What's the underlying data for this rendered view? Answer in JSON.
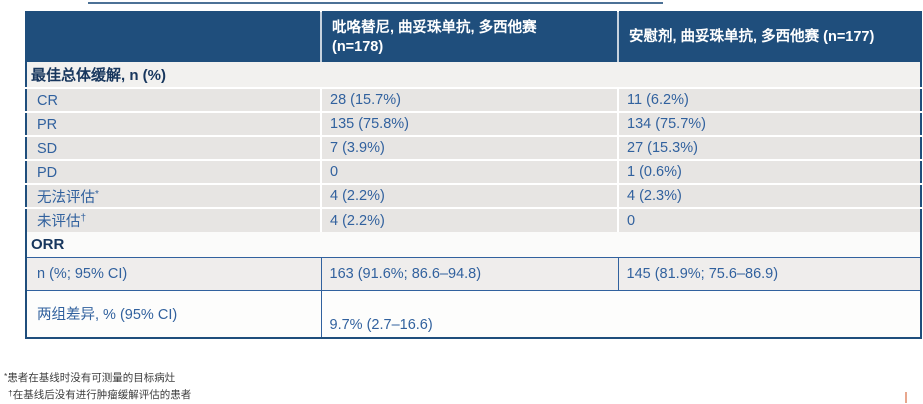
{
  "colors": {
    "header_bg": "#1F4E7C",
    "header_text": "#FFFFFF",
    "row_bg": "#E7E5E3",
    "row_text": "#31619E",
    "section_text": "#17365D",
    "grid_blue": "#31619E",
    "footnote_text": "#3D3D3D",
    "artifact_orange": "#E08A68"
  },
  "table": {
    "header": {
      "col1": "",
      "col2": "吡咯替尼, 曲妥珠单抗, 多西他赛\n(n=178)",
      "col3": "安慰剂, 曲妥珠单抗, 多西他赛 (n=177)"
    },
    "sections": [
      {
        "header": "最佳总体缓解, n (%)",
        "rows": [
          {
            "label": "CR",
            "sup": "",
            "arm1": "28 (15.7%)",
            "arm2": "11 (6.2%)"
          },
          {
            "label": "PR",
            "sup": "",
            "arm1": "135 (75.8%)",
            "arm2": "134 (75.7%)"
          },
          {
            "label": "SD",
            "sup": "",
            "arm1": "7 (3.9%)",
            "arm2": "27 (15.3%)"
          },
          {
            "label": "PD",
            "sup": "",
            "arm1": "0",
            "arm2": "1 (0.6%)"
          },
          {
            "label": "无法评估",
            "sup": "*",
            "arm1": "4 (2.2%)",
            "arm2": "4 (2.3%)"
          },
          {
            "label": "未评估",
            "sup": "†",
            "arm1": "4 (2.2%)",
            "arm2": "0"
          }
        ]
      },
      {
        "header": "ORR",
        "rows": [
          {
            "label": "n (%; 95% CI)",
            "arm1": "163 (91.6%; 86.6–94.8)",
            "arm2": "145 (81.9%; 75.6–86.9)"
          },
          {
            "label": "两组差异, % (95% CI)",
            "arm1": "9.7% (2.7–16.6)",
            "arm2": ""
          }
        ]
      }
    ]
  },
  "footnotes": [
    {
      "mark": "*",
      "text": "患者在基线时没有可测量的目标病灶"
    },
    {
      "mark": "†",
      "text": "在基线后没有进行肿瘤缓解评估的患者"
    }
  ]
}
